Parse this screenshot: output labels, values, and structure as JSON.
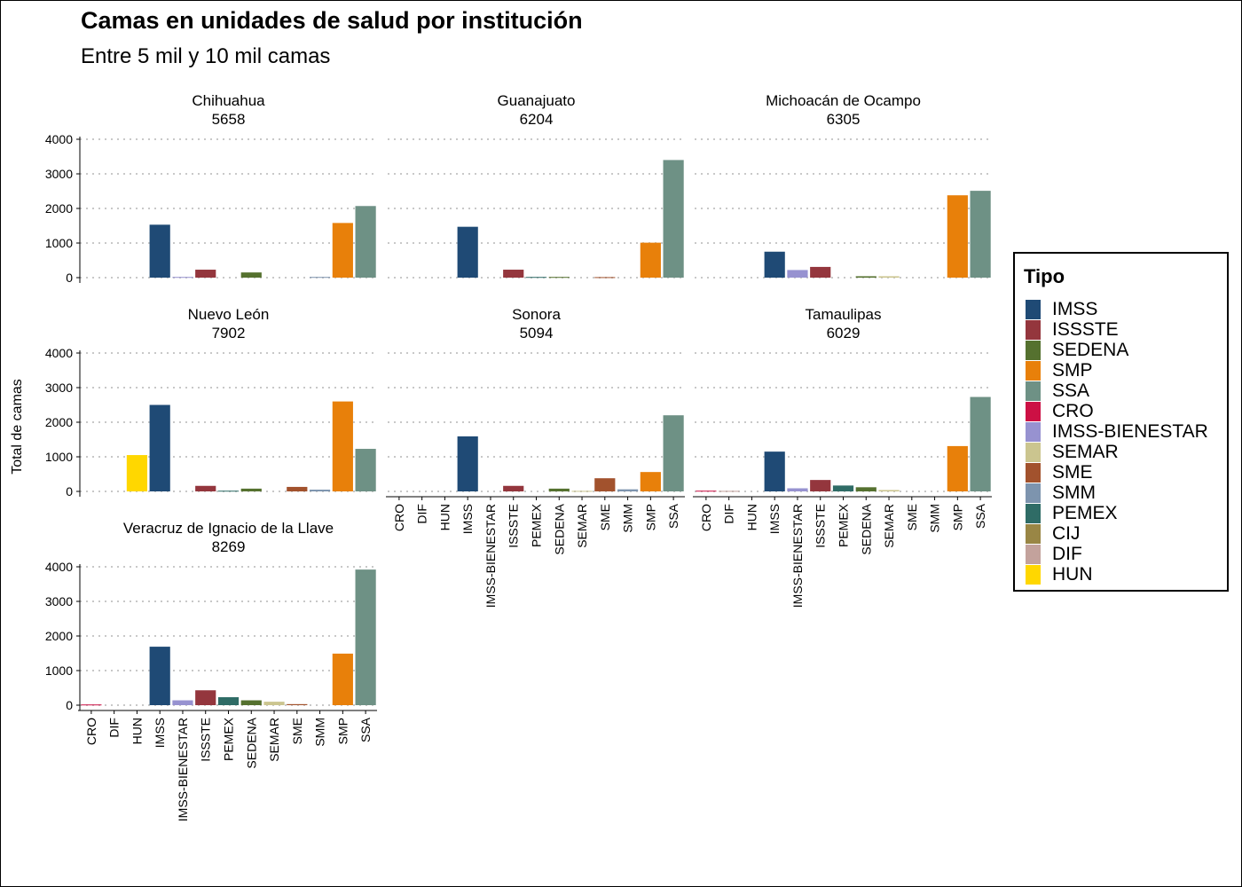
{
  "title": "Camas en unidades de salud por institución",
  "subtitle": "Entre 5 mil y 10 mil camas",
  "y_axis_title": "Total de camas",
  "legend": {
    "title": "Tipo",
    "items": [
      {
        "label": "IMSS",
        "color": "#1f4a75"
      },
      {
        "label": "ISSSTE",
        "color": "#94363d"
      },
      {
        "label": "SEDENA",
        "color": "#55712f"
      },
      {
        "label": "SMP",
        "color": "#e8800a"
      },
      {
        "label": "SSA",
        "color": "#6e9185"
      },
      {
        "label": "CRO",
        "color": "#cc1044"
      },
      {
        "label": "IMSS-BIENESTAR",
        "color": "#9792d0"
      },
      {
        "label": "SEMAR",
        "color": "#cbc58f"
      },
      {
        "label": "SME",
        "color": "#a2522d"
      },
      {
        "label": "SMM",
        "color": "#7d94ae"
      },
      {
        "label": "PEMEX",
        "color": "#2f6c66"
      },
      {
        "label": "CIJ",
        "color": "#998645"
      },
      {
        "label": "DIF",
        "color": "#c3a29c"
      },
      {
        "label": "HUN",
        "color": "#ffd700"
      }
    ]
  },
  "chart_data": {
    "type": "bar",
    "facet_layout": "3 columns, shared y axis, facets titled state + total",
    "categories": [
      "CRO",
      "DIF",
      "HUN",
      "IMSS",
      "IMSS-BIENESTAR",
      "ISSSTE",
      "PEMEX",
      "SEDENA",
      "SEMAR",
      "SME",
      "SMM",
      "SMP",
      "SSA"
    ],
    "ylabel": "Total de camas",
    "ylim": [
      0,
      4000
    ],
    "yticks": [
      "0",
      "1000",
      "2000",
      "3000",
      "4000"
    ],
    "grid": "horizontal dotted",
    "legend_position": "right",
    "panels": [
      {
        "state": "Chihuahua",
        "total": "5658",
        "values": [
          0,
          0,
          0,
          1530,
          20,
          230,
          0,
          150,
          0,
          0,
          20,
          1580,
          2070
        ]
      },
      {
        "state": "Guanajuato",
        "total": "6204",
        "values": [
          0,
          0,
          0,
          1470,
          0,
          230,
          20,
          20,
          0,
          15,
          0,
          1010,
          3400
        ]
      },
      {
        "state": "Michoacán de Ocampo",
        "total": "6305",
        "values": [
          0,
          0,
          0,
          750,
          220,
          310,
          0,
          40,
          40,
          0,
          0,
          2380,
          2510
        ]
      },
      {
        "state": "Nuevo León",
        "total": "7902",
        "values": [
          0,
          0,
          1050,
          2500,
          0,
          160,
          20,
          80,
          0,
          130,
          50,
          2600,
          1230
        ]
      },
      {
        "state": "Sonora",
        "total": "5094",
        "values": [
          0,
          0,
          0,
          1590,
          0,
          160,
          0,
          80,
          15,
          380,
          60,
          560,
          2200
        ]
      },
      {
        "state": "Tamaulipas",
        "total": "6029",
        "values": [
          20,
          15,
          0,
          1150,
          90,
          330,
          170,
          120,
          40,
          0,
          0,
          1310,
          2730
        ]
      },
      {
        "state": "Veracruz de Ignacio de la Llave",
        "total": "8269",
        "values": [
          20,
          0,
          0,
          1690,
          140,
          430,
          230,
          140,
          100,
          30,
          0,
          1490,
          3920
        ]
      }
    ]
  }
}
